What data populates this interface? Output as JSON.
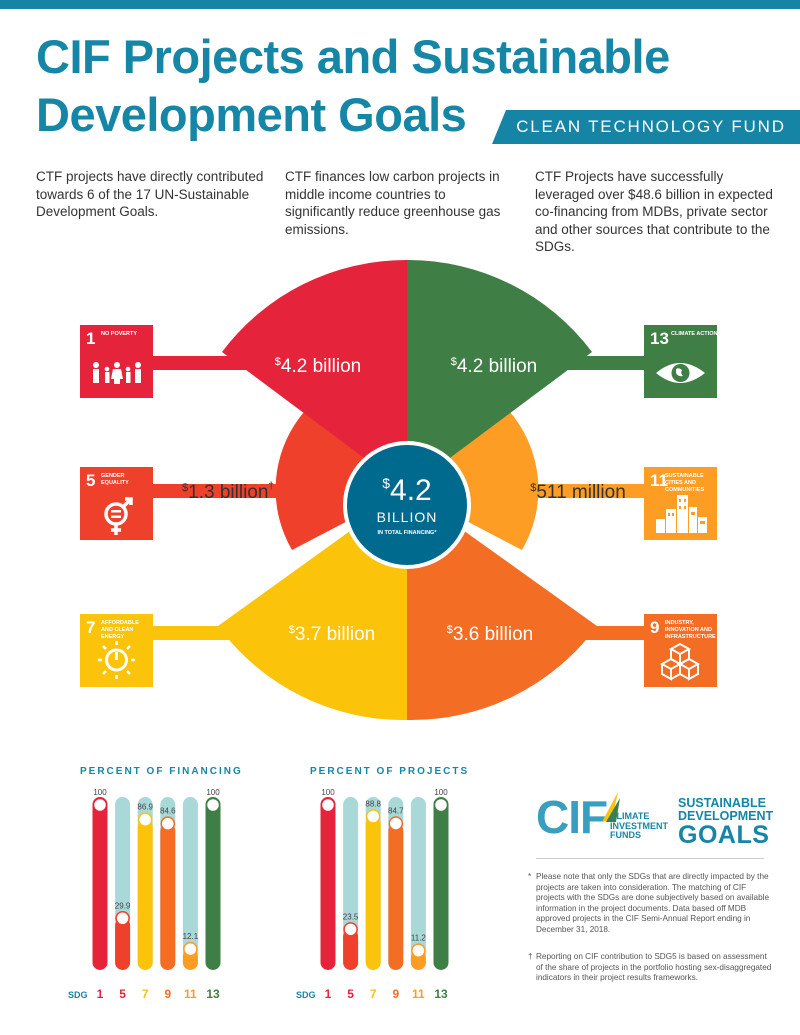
{
  "header": {
    "title_line1": "CIF Projects and Sustainable",
    "title_line2": "Development Goals",
    "fund": "CLEAN TECHNOLOGY FUND"
  },
  "intro": [
    "CTF projects have directly contributed towards 6 of the 17 UN-Sustainable Development Goals.",
    "CTF finances low carbon projects in middle income countries to significantly reduce greenhouse gas emissions.",
    "CTF Projects have successfully leveraged over $48.6 billion in expected co-financing from MDBs, private sector and other sources that contribute to the SDGs."
  ],
  "goals": [
    {
      "num": "1",
      "name": "NO POVERTY",
      "color": "#e5243b",
      "icon": "people-family-icon"
    },
    {
      "num": "13",
      "name": "CLIMATE ACTION",
      "color": "#3f7e44",
      "icon": "eye-globe-icon"
    },
    {
      "num": "5",
      "name": "GENDER EQUALITY",
      "color": "#ef402b",
      "icon": "gender-equality-icon"
    },
    {
      "num": "11",
      "name": "SUSTAINABLE CITIES AND COMMUNITIES",
      "color": "#fd9d24",
      "icon": "city-buildings-icon"
    },
    {
      "num": "7",
      "name": "AFFORDABLE AND CLEAN ENERGY",
      "color": "#fcc30b",
      "icon": "power-sun-icon"
    },
    {
      "num": "9",
      "name": "INDUSTRY, INNOVATION AND INFRASTRUCTURE",
      "color": "#f36d25",
      "icon": "cubes-icon"
    }
  ],
  "center": {
    "dollar": "$",
    "amount": "4.2",
    "unit": "BILLION",
    "caption": "IN TOTAL FINANCING",
    "mark": "*"
  },
  "segments": [
    {
      "sdg": "1",
      "sym": "$",
      "value": "4.2 billion",
      "mark": ""
    },
    {
      "sdg": "13",
      "sym": "$",
      "value": "4.2 billion",
      "mark": ""
    },
    {
      "sdg": "5",
      "sym": "$",
      "value": "1.3 billion",
      "mark": "†"
    },
    {
      "sdg": "11",
      "sym": "$",
      "value": "511 million",
      "mark": ""
    },
    {
      "sdg": "7",
      "sym": "$",
      "value": "3.7 billion",
      "mark": ""
    },
    {
      "sdg": "9",
      "sym": "$",
      "value": "3.6 billion",
      "mark": ""
    }
  ],
  "colors": {
    "sdg1": "#e5243b",
    "sdg5": "#ef402b",
    "sdg7": "#fcc30b",
    "sdg9": "#f36d25",
    "sdg11": "#fd9d24",
    "sdg13": "#3f7e44",
    "center": "#006a8e",
    "track": "#a8d8d8",
    "accent": "#1686a6"
  },
  "chart_data": [
    {
      "type": "bar",
      "title": "PERCENT OF FINANCING",
      "xlabel": "SDG",
      "categories": [
        "1",
        "5",
        "7",
        "9",
        "11",
        "13"
      ],
      "values": [
        100,
        29.9,
        86.9,
        84.6,
        12.1,
        100
      ],
      "value_labels": [
        "100",
        "29.9",
        "86.9",
        "84.6",
        "12.1",
        "100"
      ],
      "ylim": [
        0,
        100
      ]
    },
    {
      "type": "bar",
      "title": "PERCENT OF PROJECTS",
      "xlabel": "SDG",
      "categories": [
        "1",
        "5",
        "7",
        "9",
        "11",
        "13"
      ],
      "values": [
        100,
        23.5,
        88.8,
        84.7,
        11.2,
        100
      ],
      "value_labels": [
        "100",
        "23.5",
        "88.8",
        "84.7",
        "11.2",
        "100"
      ],
      "ylim": [
        0,
        100
      ]
    }
  ],
  "logos": {
    "cif_letters": "CIF",
    "cif_sub": [
      "CLIMATE",
      "INVESTMENT",
      "FUNDS"
    ],
    "sdg_lines": [
      "SUSTAINABLE",
      "DEVELOPMENT",
      "GOALS"
    ]
  },
  "footnotes": [
    {
      "mark": "*",
      "text": "Please note that only the SDGs that are directly impacted by the projects are taken into consideration. The matching of CIF projects with the SDGs are done subjectively based on available information in the project documents. Data based off MDB approved projects in the CIF Semi-Annual Report ending in December 31, 2018."
    },
    {
      "mark": "†",
      "text": "Reporting on CIF contribution to SDG5 is based on assessment of the share of projects in the portfolio hosting sex-disaggregated indicators in their project results frameworks."
    }
  ]
}
